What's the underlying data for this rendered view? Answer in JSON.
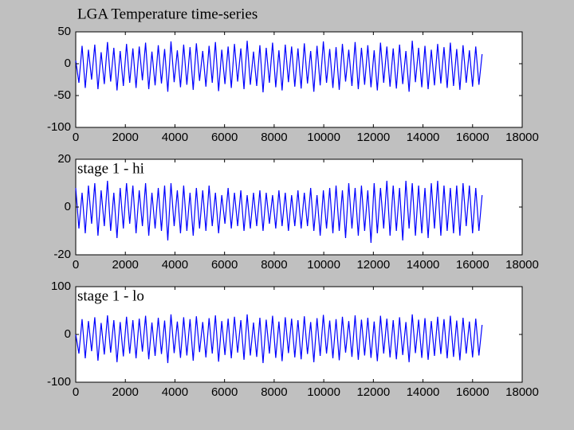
{
  "chart_data": [
    {
      "type": "line",
      "title": "LGA Temperature time-series",
      "x": [
        0,
        128,
        256,
        384,
        512,
        640,
        768,
        896,
        1024,
        1152,
        1280,
        1408,
        1536,
        1664,
        1792,
        1920,
        2048,
        2176,
        2304,
        2432,
        2560,
        2688,
        2816,
        2944,
        3072,
        3200,
        3328,
        3456,
        3584,
        3712,
        3840,
        3968,
        4096,
        4224,
        4352,
        4480,
        4608,
        4736,
        4864,
        4992,
        5120,
        5248,
        5376,
        5504,
        5632,
        5760,
        5888,
        6016,
        6144,
        6272,
        6400,
        6528,
        6656,
        6784,
        6912,
        7040,
        7168,
        7296,
        7424,
        7552,
        7680,
        7808,
        7936,
        8064,
        8192,
        8320,
        8448,
        8576,
        8704,
        8832,
        8960,
        9088,
        9216,
        9344,
        9472,
        9600,
        9728,
        9856,
        9984,
        10112,
        10240,
        10368,
        10496,
        10624,
        10752,
        10880,
        11008,
        11136,
        11264,
        11392,
        11520,
        11648,
        11776,
        11904,
        12032,
        12160,
        12288,
        12416,
        12544,
        12672,
        12800,
        12928,
        13056,
        13184,
        13312,
        13440,
        13568,
        13696,
        13824,
        13952,
        14080,
        14208,
        14336,
        14464,
        14592,
        14720,
        14848,
        14976,
        15104,
        15232,
        15360,
        15488,
        15616,
        15744,
        15872,
        16000,
        16128,
        16256,
        16384
      ],
      "values": [
        5,
        -30,
        28,
        -38,
        22,
        -25,
        30,
        -40,
        18,
        -32,
        34,
        -28,
        25,
        -42,
        20,
        -35,
        31,
        -30,
        24,
        -38,
        27,
        -26,
        33,
        -40,
        19,
        -34,
        29,
        -31,
        23,
        -44,
        35,
        -29,
        21,
        -37,
        30,
        -33,
        26,
        -41,
        32,
        -27,
        20,
        -36,
        28,
        -30,
        34,
        -43,
        22,
        -32,
        27,
        -38,
        31,
        -28,
        24,
        -40,
        36,
        -33,
        19,
        -35,
        29,
        -45,
        25,
        -30,
        33,
        -37,
        21,
        -42,
        30,
        -29,
        27,
        -36,
        24,
        -39,
        32,
        -31,
        20,
        -44,
        28,
        -34,
        35,
        -30,
        23,
        -38,
        26,
        -41,
        31,
        -28,
        22,
        -35,
        34,
        -40,
        25,
        -33,
        29,
        -37,
        21,
        -42,
        33,
        -30,
        27,
        -36,
        24,
        -39,
        30,
        -32,
        20,
        -44,
        36,
        -29,
        25,
        -37,
        28,
        -40,
        22,
        -34,
        31,
        -31,
        26,
        -38,
        33,
        -35,
        23,
        -41,
        29,
        -30,
        21,
        -36,
        27,
        -33,
        15
      ],
      "color": "#0000ff",
      "xlim": [
        0,
        18000
      ],
      "xticks": [
        0,
        2000,
        4000,
        6000,
        8000,
        10000,
        12000,
        14000,
        16000,
        18000
      ],
      "ylim": [
        -100,
        50
      ],
      "yticks": [
        -100,
        -50,
        0,
        50
      ]
    },
    {
      "type": "line",
      "title": "stage 1 - hi",
      "x": [
        0,
        128,
        256,
        384,
        512,
        640,
        768,
        896,
        1024,
        1152,
        1280,
        1408,
        1536,
        1664,
        1792,
        1920,
        2048,
        2176,
        2304,
        2432,
        2560,
        2688,
        2816,
        2944,
        3072,
        3200,
        3328,
        3456,
        3584,
        3712,
        3840,
        3968,
        4096,
        4224,
        4352,
        4480,
        4608,
        4736,
        4864,
        4992,
        5120,
        5248,
        5376,
        5504,
        5632,
        5760,
        5888,
        6016,
        6144,
        6272,
        6400,
        6528,
        6656,
        6784,
        6912,
        7040,
        7168,
        7296,
        7424,
        7552,
        7680,
        7808,
        7936,
        8064,
        8192,
        8320,
        8448,
        8576,
        8704,
        8832,
        8960,
        9088,
        9216,
        9344,
        9472,
        9600,
        9728,
        9856,
        9984,
        10112,
        10240,
        10368,
        10496,
        10624,
        10752,
        10880,
        11008,
        11136,
        11264,
        11392,
        11520,
        11648,
        11776,
        11904,
        12032,
        12160,
        12288,
        12416,
        12544,
        12672,
        12800,
        12928,
        13056,
        13184,
        13312,
        13440,
        13568,
        13696,
        13824,
        13952,
        14080,
        14208,
        14336,
        14464,
        14592,
        14720,
        14848,
        14976,
        15104,
        15232,
        15360,
        15488,
        15616,
        15744,
        15872,
        16000,
        16128,
        16256,
        16384
      ],
      "values": [
        8,
        -9,
        6,
        -11,
        9,
        -7,
        10,
        -12,
        7,
        -8,
        11,
        -10,
        6,
        -13,
        8,
        -9,
        10,
        -7,
        9,
        -11,
        7,
        -8,
        10,
        -12,
        6,
        -9,
        8,
        -10,
        9,
        -14,
        10,
        -8,
        7,
        -11,
        9,
        -10,
        6,
        -12,
        8,
        -9,
        7,
        -10,
        9,
        -8,
        6,
        -11,
        5,
        -7,
        8,
        -9,
        6,
        -8,
        7,
        -10,
        5,
        -9,
        6,
        -8,
        7,
        -10,
        6,
        -7,
        5,
        -9,
        7,
        -8,
        6,
        -10,
        5,
        -8,
        7,
        -9,
        6,
        -8,
        8,
        -10,
        5,
        -12,
        7,
        -9,
        8,
        -11,
        9,
        -10,
        7,
        -13,
        10,
        -9,
        8,
        -12,
        9,
        -10,
        7,
        -15,
        10,
        -11,
        8,
        -9,
        11,
        -12,
        9,
        -10,
        8,
        -14,
        11,
        -9,
        10,
        -12,
        9,
        -11,
        8,
        -13,
        10,
        -9,
        11,
        -12,
        9,
        -10,
        8,
        -11,
        9,
        -12,
        10,
        -8,
        9,
        -11,
        8,
        -10,
        5
      ],
      "color": "#0000ff",
      "xlim": [
        0,
        18000
      ],
      "xticks": [
        0,
        2000,
        4000,
        6000,
        8000,
        10000,
        12000,
        14000,
        16000,
        18000
      ],
      "ylim": [
        -20,
        20
      ],
      "yticks": [
        -20,
        0,
        20
      ]
    },
    {
      "type": "line",
      "title": "stage 1 - lo",
      "x": [
        0,
        128,
        256,
        384,
        512,
        640,
        768,
        896,
        1024,
        1152,
        1280,
        1408,
        1536,
        1664,
        1792,
        1920,
        2048,
        2176,
        2304,
        2432,
        2560,
        2688,
        2816,
        2944,
        3072,
        3200,
        3328,
        3456,
        3584,
        3712,
        3840,
        3968,
        4096,
        4224,
        4352,
        4480,
        4608,
        4736,
        4864,
        4992,
        5120,
        5248,
        5376,
        5504,
        5632,
        5760,
        5888,
        6016,
        6144,
        6272,
        6400,
        6528,
        6656,
        6784,
        6912,
        7040,
        7168,
        7296,
        7424,
        7552,
        7680,
        7808,
        7936,
        8064,
        8192,
        8320,
        8448,
        8576,
        8704,
        8832,
        8960,
        9088,
        9216,
        9344,
        9472,
        9600,
        9728,
        9856,
        9984,
        10112,
        10240,
        10368,
        10496,
        10624,
        10752,
        10880,
        11008,
        11136,
        11264,
        11392,
        11520,
        11648,
        11776,
        11904,
        12032,
        12160,
        12288,
        12416,
        12544,
        12672,
        12800,
        12928,
        13056,
        13184,
        13312,
        13440,
        13568,
        13696,
        13824,
        13952,
        14080,
        14208,
        14336,
        14464,
        14592,
        14720,
        14848,
        14976,
        15104,
        15232,
        15360,
        15488,
        15616,
        15744,
        15872,
        16000,
        16128,
        16256,
        16384
      ],
      "values": [
        0,
        -40,
        32,
        -50,
        28,
        -35,
        36,
        -55,
        24,
        -42,
        40,
        -38,
        30,
        -58,
        26,
        -46,
        37,
        -40,
        30,
        -50,
        33,
        -36,
        39,
        -52,
        25,
        -45,
        35,
        -41,
        29,
        -60,
        42,
        -39,
        27,
        -49,
        36,
        -44,
        32,
        -55,
        38,
        -37,
        26,
        -48,
        34,
        -40,
        40,
        -57,
        28,
        -43,
        33,
        -50,
        37,
        -38,
        30,
        -53,
        42,
        -44,
        25,
        -47,
        35,
        -60,
        31,
        -40,
        39,
        -49,
        27,
        -56,
        36,
        -39,
        33,
        -48,
        30,
        -52,
        38,
        -41,
        26,
        -58,
        34,
        -45,
        41,
        -40,
        29,
        -50,
        32,
        -54,
        37,
        -38,
        28,
        -47,
        40,
        -53,
        31,
        -44,
        35,
        -49,
        27,
        -56,
        39,
        -40,
        33,
        -48,
        30,
        -52,
        36,
        -43,
        26,
        -58,
        42,
        -39,
        31,
        -49,
        34,
        -53,
        28,
        -45,
        37,
        -41,
        32,
        -50,
        39,
        -47,
        29,
        -54,
        35,
        -40,
        27,
        -48,
        33,
        -44,
        20
      ],
      "color": "#0000ff",
      "xlim": [
        0,
        18000
      ],
      "xticks": [
        0,
        2000,
        4000,
        6000,
        8000,
        10000,
        12000,
        14000,
        16000,
        18000
      ],
      "ylim": [
        -100,
        100
      ],
      "yticks": [
        -100,
        0,
        100
      ]
    }
  ]
}
